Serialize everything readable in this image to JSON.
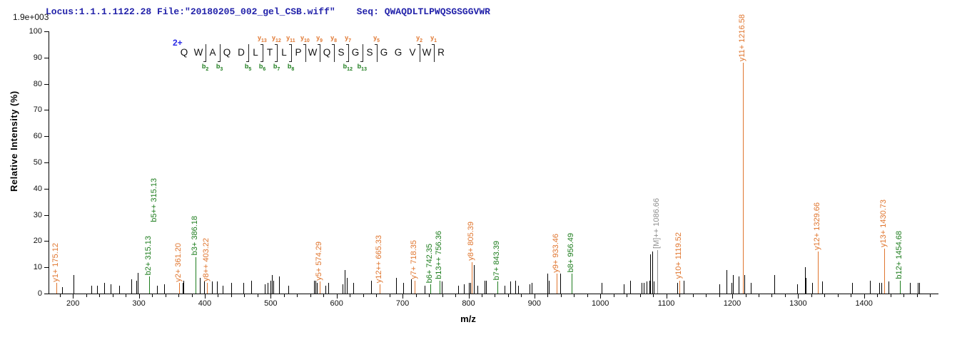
{
  "header": {
    "locus_file": "Locus:1.1.1.1122.28 File:\"20180205_002_gel_CSB.wiff\"",
    "seq_label": "Seq:",
    "sequence": "QWAQDLTLPWQSGSGGVWR",
    "max_intensity": "1.9e+003"
  },
  "colors": {
    "header_blue": "#2222AA",
    "charge_blue": "#2A2AE6",
    "y_ion": "#E0762F",
    "b_ion": "#1E7D1E",
    "precursor": "#909090",
    "peak_black": "#000000",
    "axis": "#000000"
  },
  "ladder": {
    "charge": "2+",
    "residues": [
      {
        "aa": "Q"
      },
      {
        "aa": "W",
        "b": "b2"
      },
      {
        "aa": "A",
        "b": "b3"
      },
      {
        "aa": "Q"
      },
      {
        "aa": "D",
        "b": "b5"
      },
      {
        "aa": "L",
        "b": "b6",
        "y": "y13"
      },
      {
        "aa": "T",
        "b": "b7",
        "y": "y12"
      },
      {
        "aa": "L",
        "b": "b8",
        "y": "y11"
      },
      {
        "aa": "P",
        "y": "y10"
      },
      {
        "aa": "W",
        "y": "y9"
      },
      {
        "aa": "Q",
        "y": "y8"
      },
      {
        "aa": "S",
        "b": "b12",
        "y": "y7"
      },
      {
        "aa": "G",
        "b": "b13"
      },
      {
        "aa": "S",
        "y": "y5"
      },
      {
        "aa": "G"
      },
      {
        "aa": "G"
      },
      {
        "aa": "V",
        "y": "y2"
      },
      {
        "aa": "W",
        "y": "y1"
      },
      {
        "aa": "R"
      }
    ]
  },
  "chart_data": {
    "type": "bar",
    "title": "",
    "xlabel": "m/z",
    "ylabel": "Relative  Intensity (%)",
    "xlim": [
      163,
      1513
    ],
    "ylim": [
      0,
      100
    ],
    "x_major_ticks": [
      200,
      300,
      400,
      500,
      600,
      700,
      800,
      900,
      1000,
      1100,
      1200,
      1300,
      1400
    ],
    "x_minor_step": 20,
    "x_minor_start": 180,
    "x_minor_end": 1500,
    "y_ticks": [
      0,
      10,
      20,
      30,
      40,
      50,
      60,
      70,
      80,
      90,
      100
    ],
    "grid": false,
    "max_intensity_label": "1.9e+003",
    "annotated_peaks": [
      {
        "label": "y1+ 175.12",
        "mz": 175.12,
        "intensity": 4,
        "ion": "y"
      },
      {
        "label": "b2+ 315.13",
        "mz": 315.13,
        "intensity": 6.5,
        "ion": "b"
      },
      {
        "label": "b5++ 315.13",
        "mz": 315.13,
        "intensity": 6.5,
        "ion": "b",
        "noline": true,
        "dx": 8,
        "dy": 74
      },
      {
        "label": "y2+ 361.20",
        "mz": 361.2,
        "intensity": 4,
        "ion": "y"
      },
      {
        "label": "b3+ 386.18",
        "mz": 386.18,
        "intensity": 14,
        "ion": "b"
      },
      {
        "label": "y8++ 403.22",
        "mz": 403.22,
        "intensity": 4,
        "ion": "y"
      },
      {
        "label": "y5+ 574.29",
        "mz": 574.29,
        "intensity": 4.5,
        "ion": "y"
      },
      {
        "label": "y12++ 665.33",
        "mz": 665.33,
        "intensity": 3.5,
        "ion": "y"
      },
      {
        "label": "y7+ 718.35",
        "mz": 718.35,
        "intensity": 5,
        "ion": "y"
      },
      {
        "label": "b6+ 742.35",
        "mz": 742.35,
        "intensity": 3.5,
        "ion": "b"
      },
      {
        "label": "b13++ 756.36",
        "mz": 756.36,
        "intensity": 5,
        "ion": "b"
      },
      {
        "label": "y8+ 805.39",
        "mz": 805.39,
        "intensity": 12,
        "ion": "y"
      },
      {
        "label": "b7+ 843.39",
        "mz": 843.39,
        "intensity": 4.5,
        "ion": "b"
      },
      {
        "label": "y9+ 933.46",
        "mz": 933.46,
        "intensity": 7.5,
        "ion": "y"
      },
      {
        "label": "b8+ 956.49",
        "mz": 956.49,
        "intensity": 7.5,
        "ion": "b"
      },
      {
        "label": "[M]++ 1086.66",
        "mz": 1086.66,
        "intensity": 16.5,
        "ion": "M"
      },
      {
        "label": "y10+ 1119.52",
        "mz": 1119.52,
        "intensity": 5,
        "ion": "y"
      },
      {
        "label": "y11+ 1216.58",
        "mz": 1216.58,
        "intensity": 88,
        "ion": "y"
      },
      {
        "label": "y12+ 1329.66",
        "mz": 1329.66,
        "intensity": 16,
        "ion": "y"
      },
      {
        "label": "y13+ 1430.73",
        "mz": 1430.73,
        "intensity": 17,
        "ion": "y"
      },
      {
        "label": "b12+ 1454.68",
        "mz": 1454.68,
        "intensity": 5,
        "ion": "b"
      }
    ],
    "unlabeled_peaks": [
      [
        184,
        2.5
      ],
      [
        201,
        7
      ],
      [
        228,
        3
      ],
      [
        237,
        3
      ],
      [
        247,
        4
      ],
      [
        257,
        3.5
      ],
      [
        270,
        3
      ],
      [
        288,
        5.5
      ],
      [
        296,
        5
      ],
      [
        298,
        8
      ],
      [
        327,
        3
      ],
      [
        338,
        3.5
      ],
      [
        366,
        4
      ],
      [
        368,
        5
      ],
      [
        392,
        6
      ],
      [
        399,
        4.5
      ],
      [
        411,
        4.5
      ],
      [
        418,
        4.5
      ],
      [
        427,
        3
      ],
      [
        440,
        4
      ],
      [
        459,
        4
      ],
      [
        470,
        5
      ],
      [
        491,
        3.5
      ],
      [
        495,
        4
      ],
      [
        500,
        5
      ],
      [
        502,
        7
      ],
      [
        504,
        5
      ],
      [
        513,
        6.5
      ],
      [
        527,
        3
      ],
      [
        566,
        5
      ],
      [
        568,
        5
      ],
      [
        570,
        4
      ],
      [
        583,
        3
      ],
      [
        587,
        4
      ],
      [
        609,
        3.5
      ],
      [
        612,
        9
      ],
      [
        615,
        6
      ],
      [
        625,
        4
      ],
      [
        652,
        5
      ],
      [
        690,
        6
      ],
      [
        701,
        4
      ],
      [
        713,
        5.5
      ],
      [
        733,
        3
      ],
      [
        759,
        4.5
      ],
      [
        784,
        3
      ],
      [
        793,
        3.5
      ],
      [
        801,
        4
      ],
      [
        803,
        4
      ],
      [
        808,
        11
      ],
      [
        813,
        3
      ],
      [
        824,
        5
      ],
      [
        826,
        5
      ],
      [
        855,
        3
      ],
      [
        863,
        4.5
      ],
      [
        871,
        5
      ],
      [
        875,
        3
      ],
      [
        893,
        3.5
      ],
      [
        896,
        4
      ],
      [
        920,
        7.5
      ],
      [
        922,
        5
      ],
      [
        939,
        7.5
      ],
      [
        1002,
        4
      ],
      [
        1035,
        3.5
      ],
      [
        1045,
        5
      ],
      [
        1063,
        4
      ],
      [
        1066,
        4
      ],
      [
        1070,
        4.5
      ],
      [
        1074,
        5
      ],
      [
        1076,
        15
      ],
      [
        1079,
        16
      ],
      [
        1081,
        4.5
      ],
      [
        1117,
        4
      ],
      [
        1126,
        5
      ],
      [
        1180,
        3.5
      ],
      [
        1191,
        9
      ],
      [
        1199,
        4
      ],
      [
        1201,
        7
      ],
      [
        1210,
        6.5
      ],
      [
        1218,
        7
      ],
      [
        1228,
        4
      ],
      [
        1264,
        7
      ],
      [
        1299,
        3.5
      ],
      [
        1310,
        10
      ],
      [
        1312,
        6
      ],
      [
        1321,
        4
      ],
      [
        1336,
        4.5
      ],
      [
        1382,
        4
      ],
      [
        1409,
        5
      ],
      [
        1423,
        4
      ],
      [
        1426,
        4
      ],
      [
        1437,
        4.5
      ],
      [
        1470,
        4
      ],
      [
        1481,
        4
      ],
      [
        1484,
        4
      ]
    ]
  }
}
